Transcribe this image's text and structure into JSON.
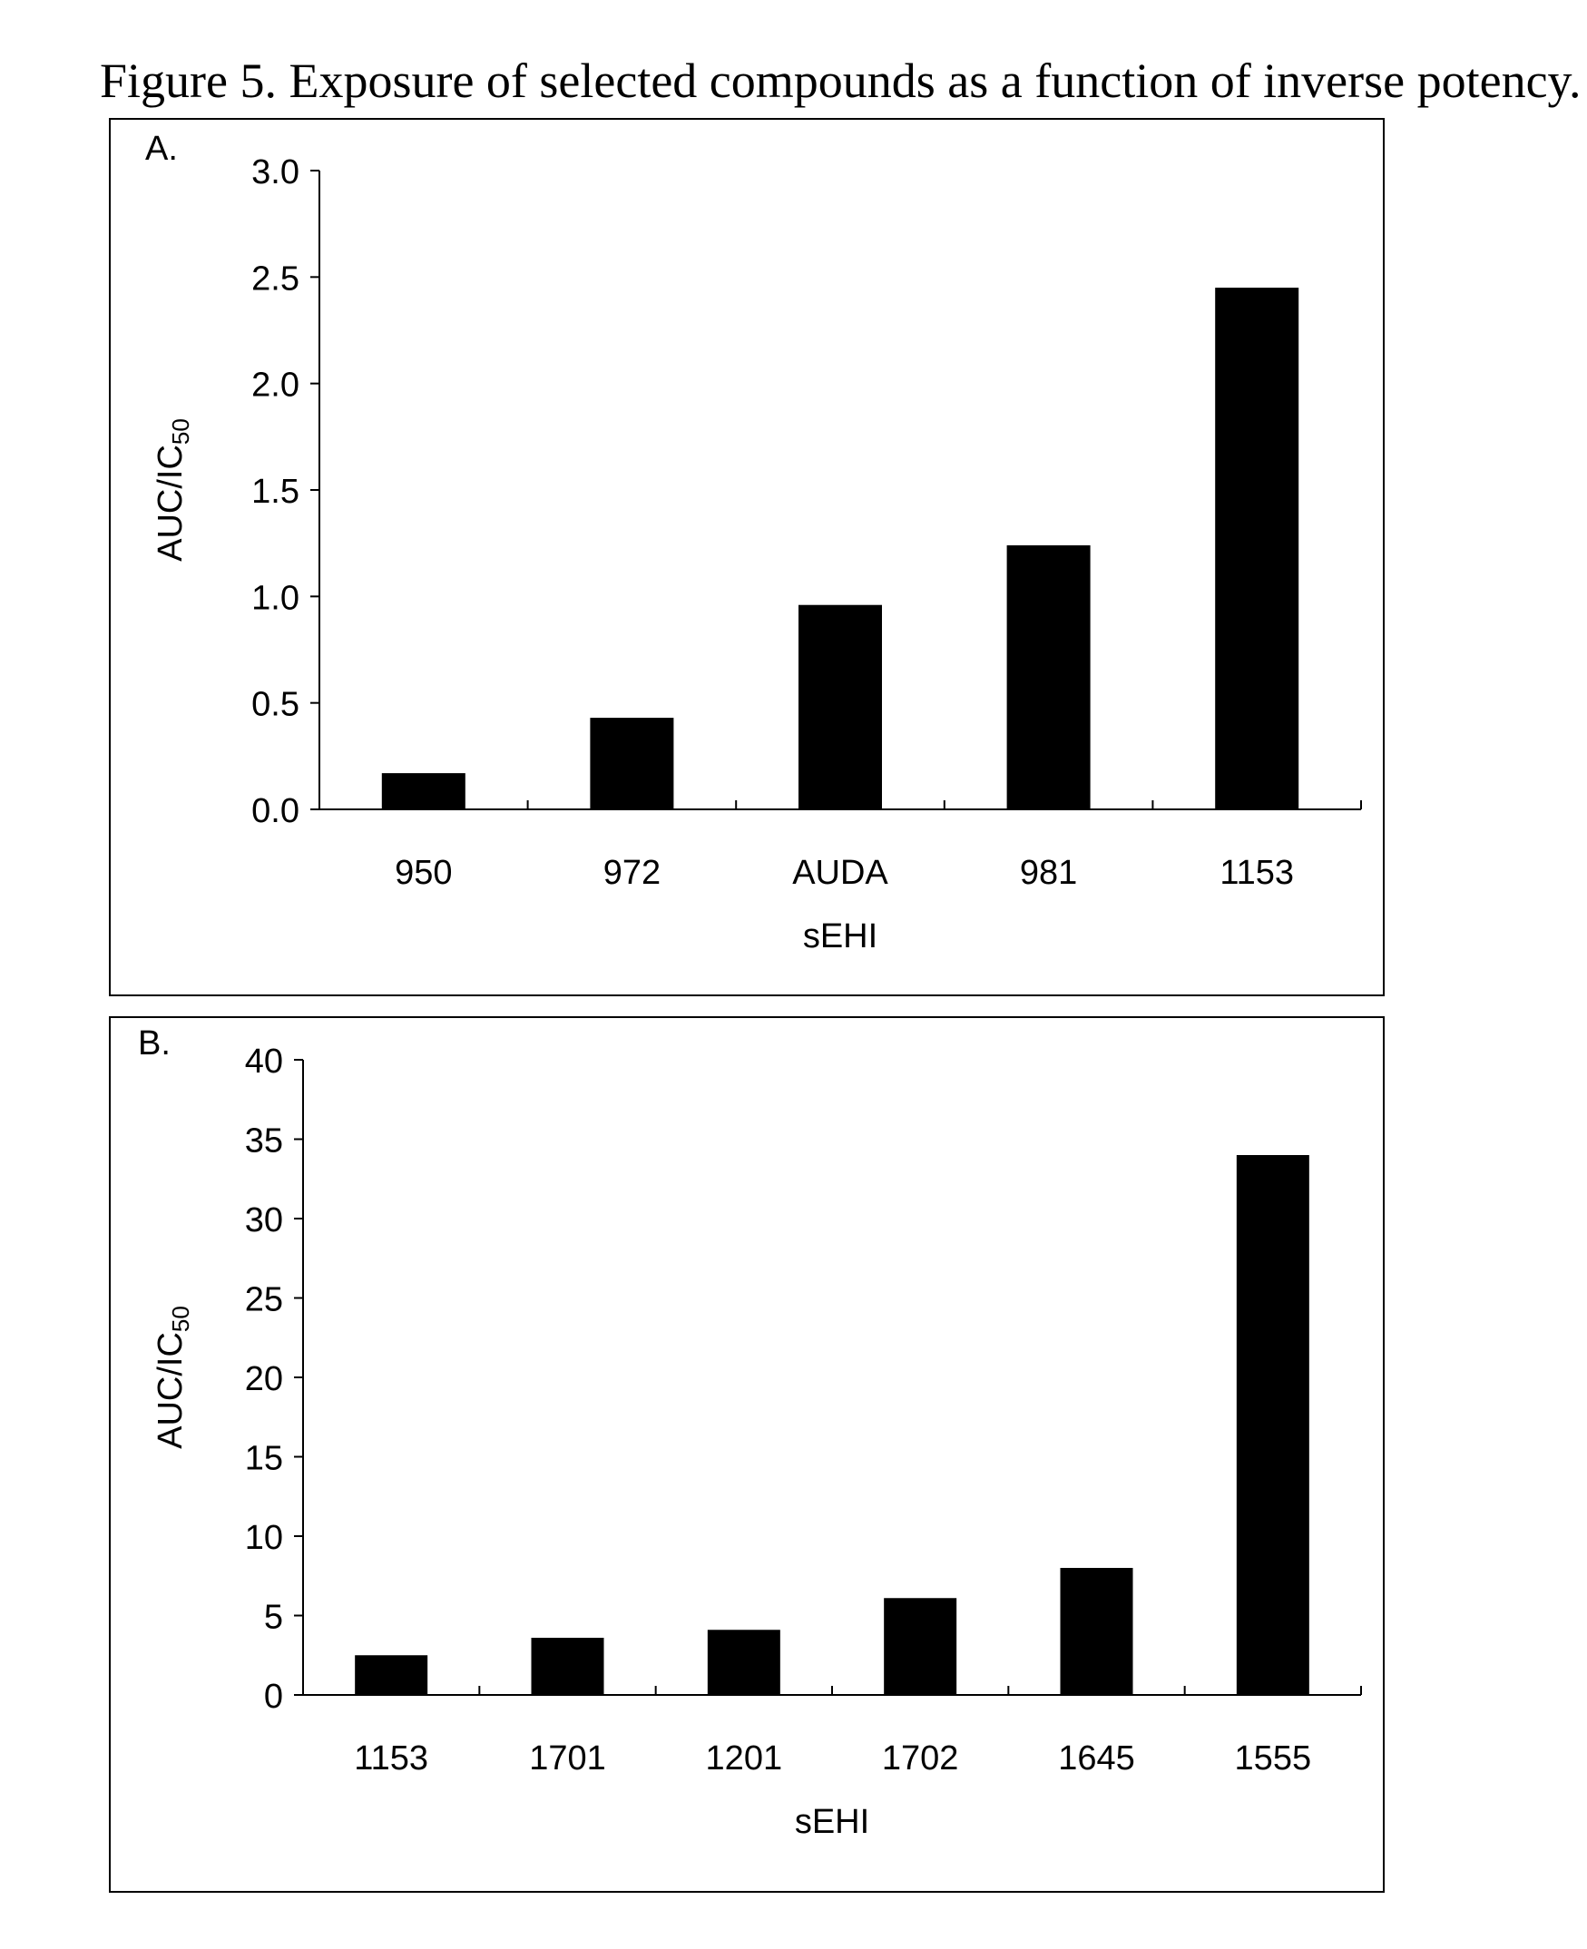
{
  "caption": "Figure 5. Exposure of selected compounds as a function of inverse potency.",
  "chart_data": [
    {
      "type": "bar",
      "panel_label": "A.",
      "categories": [
        "950",
        "972",
        "AUDA",
        "981",
        "1153"
      ],
      "values": [
        0.17,
        0.43,
        0.96,
        1.24,
        2.45
      ],
      "xlabel": "sEHI",
      "ylabel": "AUC/IC",
      "ylabel_sub": "50",
      "ylim": [
        0,
        3
      ],
      "yticks": [
        "0.0",
        "0.5",
        "1.0",
        "1.5",
        "2.0",
        "2.5",
        "3.0"
      ],
      "grid": false,
      "bar_color": "#000000"
    },
    {
      "type": "bar",
      "panel_label": "B.",
      "categories": [
        "1153",
        "1701",
        "1201",
        "1702",
        "1645",
        "1555"
      ],
      "values": [
        2.5,
        3.6,
        4.1,
        6.1,
        8.0,
        34.0
      ],
      "xlabel": "sEHI",
      "ylabel": "AUC/IC",
      "ylabel_sub": "50",
      "ylim": [
        0,
        40
      ],
      "yticks": [
        "0",
        "5",
        "10",
        "15",
        "20",
        "25",
        "30",
        "35",
        "40"
      ],
      "grid": false,
      "bar_color": "#000000"
    }
  ]
}
